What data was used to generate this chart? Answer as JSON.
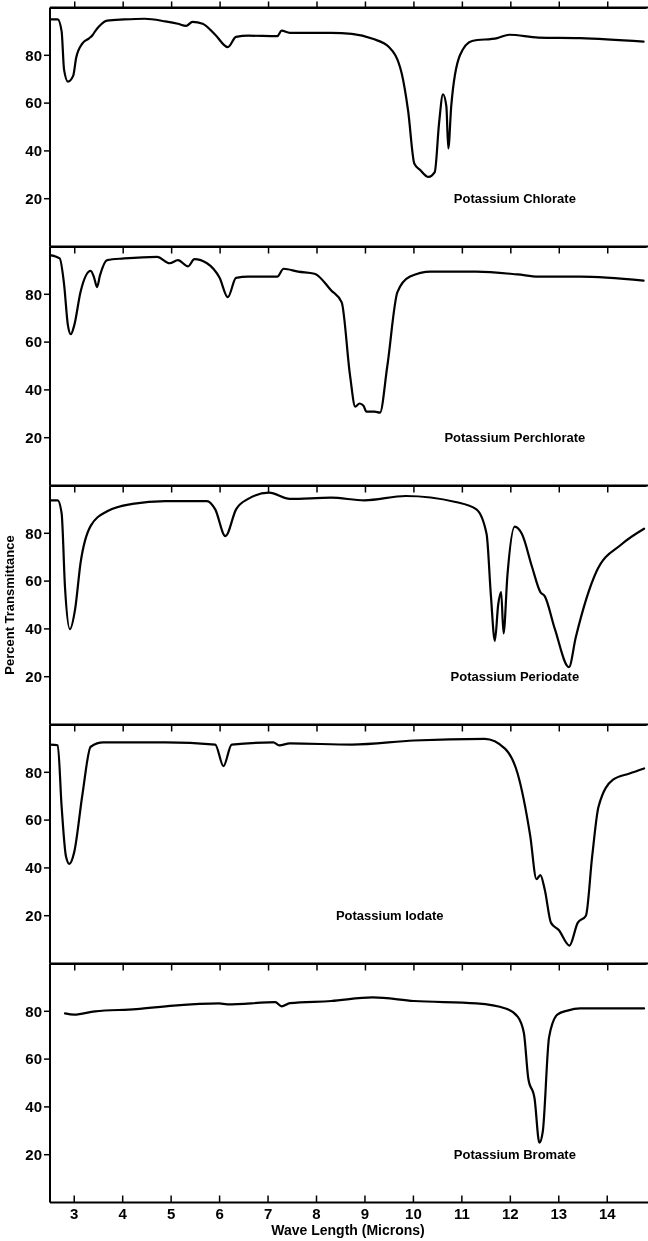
{
  "chart_data": [
    {
      "type": "line",
      "xlim": [
        2.5,
        14.8
      ],
      "xticks": [
        3,
        4,
        5,
        6,
        7,
        8,
        9,
        10,
        11,
        12,
        13,
        14
      ],
      "ylim": [
        0,
        100
      ],
      "yticks": [
        20,
        40,
        60,
        80
      ],
      "tick_labels": "y",
      "series": [
        {
          "name": "Potassium Chlorate",
          "color": "#000000",
          "x": [
            2.5,
            2.66,
            2.74,
            2.79,
            2.87,
            2.98,
            3.04,
            3.17,
            3.3,
            3.38,
            3.43,
            3.51,
            3.68,
            4.03,
            4.45,
            4.88,
            5.14,
            5.31,
            5.44,
            5.65,
            5.91,
            6.17,
            6.34,
            6.59,
            7.19,
            7.28,
            7.45,
            8.3,
            8.73,
            9.16,
            9.5,
            9.76,
            9.89,
            10.02,
            10.14,
            10.31,
            10.44,
            10.53,
            10.61,
            10.68,
            10.72,
            10.78,
            10.96,
            11.21,
            11.73,
            11.98,
            12.58,
            13.44,
            14.75
          ],
          "values": [
            95,
            95,
            90,
            74,
            69,
            71.5,
            79,
            85,
            87,
            88.5,
            90,
            92,
            94.5,
            95,
            95.3,
            94.2,
            93.2,
            92.3,
            94,
            93.2,
            88.6,
            83.4,
            87.7,
            88.2,
            88,
            90.3,
            89.4,
            89.4,
            89,
            86.9,
            83.4,
            72.3,
            56.9,
            34.6,
            32,
            29.1,
            31.1,
            51.7,
            63.7,
            58.6,
            41,
            58.6,
            80,
            86,
            87.2,
            88.6,
            87.4,
            87.2,
            85.7
          ]
        }
      ]
    },
    {
      "type": "line",
      "xlim": [
        2.5,
        14.8
      ],
      "xticks": [
        3,
        4,
        5,
        6,
        7,
        8,
        9,
        10,
        11,
        12,
        13,
        14
      ],
      "ylim": [
        0,
        100
      ],
      "yticks": [
        20,
        40,
        60,
        80
      ],
      "tick_labels": "y",
      "series": [
        {
          "name": "Potassium Perchlorate",
          "color": "#000000",
          "x": [
            2.5,
            2.7,
            2.79,
            2.87,
            2.93,
            3.0,
            3.13,
            3.34,
            3.41,
            3.47,
            3.53,
            3.68,
            4.03,
            4.71,
            4.97,
            5.14,
            5.35,
            5.48,
            5.74,
            6.0,
            6.17,
            6.34,
            6.59,
            7.19,
            7.32,
            7.62,
            7.96,
            8.3,
            8.52,
            8.69,
            8.8,
            8.89,
            8.97,
            9.03,
            9.2,
            9.31,
            9.46,
            9.67,
            9.93,
            10.36,
            11.3,
            12.15,
            12.58,
            13.44,
            14.75
          ],
          "values": [
            96.4,
            95,
            84.3,
            67,
            63.3,
            67,
            81,
            89.8,
            87,
            83,
            87.8,
            94.3,
            95,
            95.7,
            93,
            94.3,
            91.7,
            94.7,
            93,
            86.9,
            78.8,
            86.9,
            87.4,
            87.4,
            90.7,
            89.5,
            88.6,
            81.7,
            76.6,
            46.4,
            33,
            34.3,
            33.4,
            30.9,
            30.9,
            30.5,
            49.8,
            80.9,
            87.4,
            89.5,
            89.5,
            88.3,
            87.4,
            87.4,
            85.7
          ]
        }
      ]
    },
    {
      "type": "line",
      "ylabel": "Percent Transmittance",
      "xlim": [
        2.5,
        14.8
      ],
      "xticks": [
        3,
        4,
        5,
        6,
        7,
        8,
        9,
        10,
        11,
        12,
        13,
        14
      ],
      "ylim": [
        0,
        100
      ],
      "yticks": [
        20,
        40,
        60,
        80
      ],
      "tick_labels": "y",
      "series": [
        {
          "name": "Potassium Periodate",
          "color": "#000000",
          "x": [
            2.5,
            2.66,
            2.74,
            2.81,
            2.91,
            3.02,
            3.13,
            3.34,
            3.68,
            4.2,
            4.88,
            5.74,
            5.91,
            6.12,
            6.34,
            6.59,
            7.02,
            7.45,
            8.3,
            8.99,
            9.84,
            10.87,
            11.3,
            11.51,
            11.6,
            11.68,
            11.75,
            11.81,
            11.86,
            11.94,
            12.09,
            12.24,
            12.45,
            12.62,
            12.71,
            12.92,
            13.21,
            13.35,
            13.78,
            14.29,
            14.76
          ],
          "values": [
            93.8,
            93.8,
            88.3,
            57.2,
            39.9,
            48.5,
            67.5,
            83.1,
            89.2,
            92.3,
            93.5,
            93.5,
            90,
            78.8,
            90,
            94.4,
            97,
            94.4,
            94.9,
            93.8,
            95.6,
            93.1,
            90,
            79.7,
            53.7,
            35,
            50.2,
            55.4,
            38.1,
            62.4,
            82.8,
            79.7,
            65.8,
            55.4,
            53.7,
            39.9,
            24,
            36.4,
            64.1,
            75.3,
            81.9
          ]
        }
      ]
    },
    {
      "type": "line",
      "xlim": [
        2.5,
        14.8
      ],
      "xticks": [
        3,
        4,
        5,
        6,
        7,
        8,
        9,
        10,
        11,
        12,
        13,
        14
      ],
      "ylim": [
        0,
        100
      ],
      "yticks": [
        20,
        40,
        60,
        80
      ],
      "tick_labels": "y",
      "series": [
        {
          "name": "Potassium Iodate",
          "color": "#000000",
          "x": [
            2.5,
            2.66,
            2.74,
            2.83,
            2.9,
            3.0,
            3.17,
            3.34,
            3.6,
            4.88,
            5.91,
            6.08,
            6.25,
            7.11,
            7.23,
            7.45,
            8.73,
            10.01,
            11.47,
            11.89,
            12.15,
            12.41,
            12.54,
            12.62,
            12.71,
            12.84,
            13.0,
            13.22,
            13.39,
            13.56,
            13.69,
            13.82,
            14.12,
            14.46,
            14.76
          ],
          "values": [
            91.6,
            91.3,
            65.6,
            44.8,
            41.7,
            46.6,
            70.8,
            90.7,
            92.5,
            92.5,
            91.6,
            82.6,
            91.6,
            92.5,
            91.3,
            92.1,
            91.6,
            93.3,
            94,
            89.9,
            79.5,
            53.5,
            35.3,
            37,
            31,
            17,
            14,
            7.5,
            17,
            20,
            45,
            65.6,
            76.9,
            79.5,
            81.6
          ]
        }
      ]
    },
    {
      "type": "line",
      "xlabel": "Wave Length (Microns)",
      "xlim": [
        2.5,
        14.8
      ],
      "xticks": [
        3,
        4,
        5,
        6,
        7,
        8,
        9,
        10,
        11,
        12,
        13,
        14
      ],
      "ylim": [
        0,
        100
      ],
      "yticks": [
        20,
        40,
        60,
        80
      ],
      "series": [
        {
          "name": "Potassium Bromate",
          "color": "#000000",
          "x": [
            2.81,
            3.0,
            3.43,
            4.28,
            5.05,
            5.99,
            6.16,
            7.15,
            7.28,
            7.45,
            8.3,
            9.16,
            10.01,
            11.3,
            11.9,
            12.15,
            12.28,
            12.37,
            12.5,
            12.6,
            12.67,
            12.8,
            12.97,
            13.18,
            13.44,
            14.76
          ],
          "values": [
            79.1,
            78.6,
            80,
            80.9,
            82.4,
            83.3,
            82.9,
            83.8,
            82.1,
            83.4,
            84.3,
            85.8,
            84.3,
            83.3,
            81.2,
            77.8,
            70.9,
            52,
            43.5,
            25,
            29.7,
            69.2,
            78.6,
            80.3,
            81.2,
            81.2
          ]
        }
      ]
    }
  ]
}
